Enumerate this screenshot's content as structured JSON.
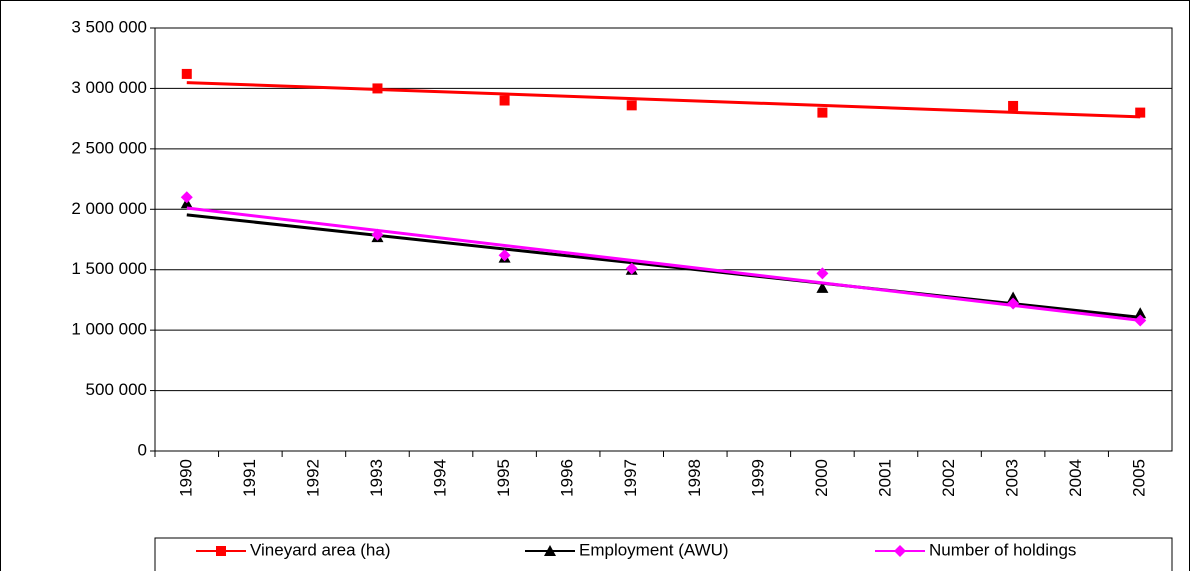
{
  "chart_data": {
    "type": "line",
    "categories": [
      "1990",
      "1991",
      "1992",
      "1993",
      "1994",
      "1995",
      "1996",
      "1997",
      "1998",
      "1999",
      "2000",
      "2001",
      "2002",
      "2003",
      "2004",
      "2005"
    ],
    "series": [
      {
        "name": "Vineyard area (ha)",
        "color": "#ff0000",
        "marker": "square",
        "trendline": "linear",
        "values": [
          3120000,
          null,
          null,
          3000000,
          null,
          2900000,
          null,
          2860000,
          null,
          null,
          2800000,
          null,
          null,
          2855000,
          null,
          2800000
        ]
      },
      {
        "name": "Employment (AWU)",
        "color": "#000000",
        "marker": "triangle",
        "trendline": "linear",
        "values": [
          2050000,
          null,
          null,
          1770000,
          null,
          1600000,
          null,
          1500000,
          null,
          null,
          1350000,
          null,
          null,
          1270000,
          null,
          1140000
        ]
      },
      {
        "name": "Number of holdings",
        "color": "#ff00ff",
        "marker": "diamond",
        "trendline": "linear",
        "values": [
          2100000,
          null,
          null,
          1790000,
          null,
          1620000,
          null,
          1510000,
          null,
          null,
          1470000,
          null,
          null,
          1220000,
          null,
          1080000
        ]
      }
    ],
    "ylim": [
      0,
      3500000
    ],
    "yticks": [
      0,
      {
        "value": 500000,
        "label": "500 000"
      },
      {
        "value": 1000000,
        "label": "1 000 000"
      },
      {
        "value": 1500000,
        "label": "1 500 000"
      },
      {
        "value": 2000000,
        "label": "2 000 000"
      },
      {
        "value": 2500000,
        "label": "2 500 000"
      },
      {
        "value": 3000000,
        "label": "3 000 000"
      },
      {
        "value": 3500000,
        "label": "3 500 000"
      }
    ],
    "grid": true,
    "legend": "bottom"
  }
}
